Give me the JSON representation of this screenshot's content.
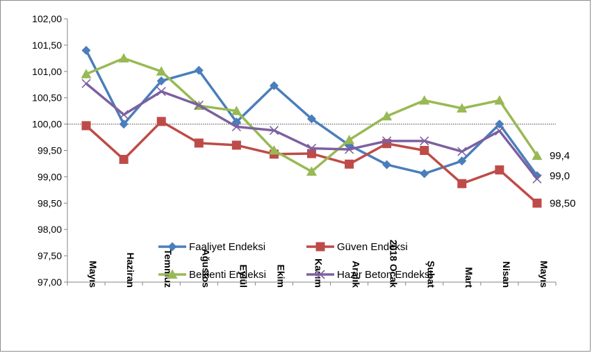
{
  "chart_data": {
    "type": "line",
    "categories": [
      "Mayıs",
      "Haziran",
      "Temmuz",
      "Ağustos",
      "Eylül",
      "Ekim",
      "Kasım",
      "Aralık",
      "2018 Ocak",
      "Şubat",
      "Mart",
      "Nisan",
      "Mayıs"
    ],
    "ylim": [
      97.0,
      102.0
    ],
    "yticks": [
      "97,00",
      "97,50",
      "98,00",
      "98,50",
      "99,00",
      "99,50",
      "100,00",
      "100,50",
      "101,00",
      "101,50",
      "102,00"
    ],
    "reference_line": 100.0,
    "grid": false,
    "legend_position": "bottom-center, inside plot",
    "series": [
      {
        "name": "Faaliyet Endeksi",
        "color": "#4a7ebb",
        "marker": "diamond",
        "values": [
          101.4,
          100.0,
          100.82,
          101.02,
          100.04,
          100.73,
          100.1,
          99.6,
          99.23,
          99.06,
          99.3,
          100.0,
          99.02
        ],
        "end_label": "99,0"
      },
      {
        "name": "Güven Endeksi",
        "color": "#be4b48",
        "marker": "square",
        "values": [
          99.97,
          99.33,
          100.05,
          99.64,
          99.6,
          99.43,
          99.44,
          99.24,
          99.63,
          99.5,
          98.87,
          99.13,
          98.5
        ],
        "end_label": "98,50"
      },
      {
        "name": "Beklenti Endeksi",
        "color": "#98b954",
        "marker": "triangle",
        "values": [
          100.95,
          101.25,
          101.0,
          100.35,
          100.25,
          99.5,
          99.1,
          99.7,
          100.15,
          100.45,
          100.3,
          100.45,
          99.4
        ],
        "end_label": "99,4"
      },
      {
        "name": "Hazır Beton Endeksi",
        "color": "#7d60a0",
        "marker": "x",
        "values": [
          100.77,
          100.18,
          100.62,
          100.36,
          99.95,
          99.88,
          99.54,
          99.52,
          99.68,
          99.68,
          99.48,
          99.87,
          98.96
        ],
        "end_label": ""
      }
    ]
  }
}
